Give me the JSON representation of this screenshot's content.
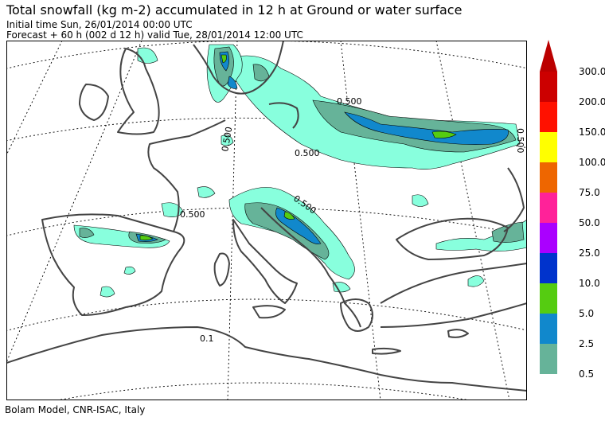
{
  "header": {
    "title": "Total snowfall (kg m-2) accumulated in  12 h at Ground or water surface",
    "initial_time": "Initial time  Sun, 26/01/2014  00:00 UTC",
    "forecast": "Forecast  +  60 h  (002 d 12 h)  valid Tue, 28/01/2014 12:00 UTC"
  },
  "footer": {
    "credit": "Bolam Model, CNR-ISAC, Italy"
  },
  "map": {
    "contour_labels": [
      "0.500",
      "0.500",
      "0.500",
      "0.500",
      "0.500",
      "0.1",
      "0.500"
    ]
  },
  "colorbar": {
    "levels": [
      {
        "label": "300.0",
        "color": "#cc0000"
      },
      {
        "label": "200.0",
        "color": "#ff1100"
      },
      {
        "label": "150.0",
        "color": "#ffff00"
      },
      {
        "label": "100.0",
        "color": "#ee6600"
      },
      {
        "label": "75.0",
        "color": "#ff2299"
      },
      {
        "label": "50.0",
        "color": "#aa00ff"
      },
      {
        "label": "25.0",
        "color": "#0033cc"
      },
      {
        "label": "10.0",
        "color": "#55cc11"
      },
      {
        "label": "5.0",
        "color": "#1188cc"
      },
      {
        "label": "2.5",
        "color": "#66b399"
      },
      {
        "label": "0.5",
        "color": "#88ffdd"
      }
    ],
    "top_arrow_color": "#bb0000"
  }
}
